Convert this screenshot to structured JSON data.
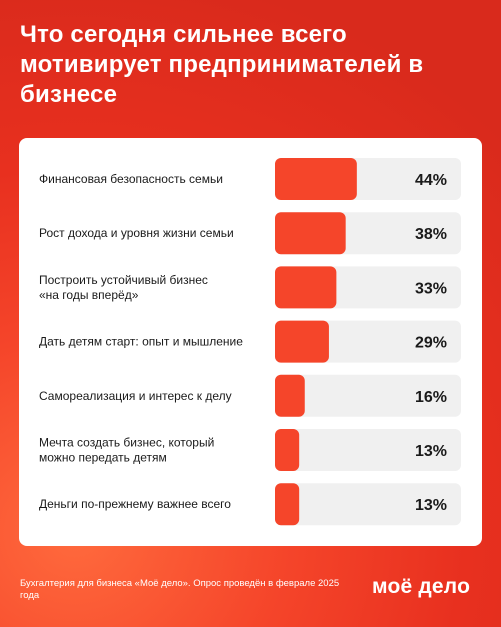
{
  "header": {
    "title": "Что сегодня сильнее всего мотивирует предпринимателей в бизнесе"
  },
  "colors": {
    "bar_fill": "#f5452a",
    "bar_track": "#f0f0f0",
    "background": "#e8301f"
  },
  "chart_data": {
    "type": "bar",
    "orientation": "horizontal",
    "categories": [
      [
        "Финансовая безопасность семьи"
      ],
      [
        "Рост дохода и уровня жизни семьи"
      ],
      [
        "Построить устойчивый бизнес",
        "«на годы вперёд»"
      ],
      [
        "Дать детям старт: опыт и мышление"
      ],
      [
        "Самореализация и интерес к делу"
      ],
      [
        "Мечта создать бизнес, который",
        "можно передать детям"
      ],
      [
        "Деньги по-прежнему важнее всего"
      ]
    ],
    "values": [
      44,
      38,
      33,
      29,
      16,
      13,
      13
    ],
    "value_labels": [
      "44%",
      "38%",
      "33%",
      "29%",
      "16%",
      "13%",
      "13%"
    ],
    "xlim": [
      0,
      100
    ],
    "grid": false,
    "legend": false
  },
  "footer": {
    "note": "Бухгалтерия для бизнеса «Моё дело». Опрос проведён в феврале 2025 года",
    "logo": "моё дело"
  }
}
